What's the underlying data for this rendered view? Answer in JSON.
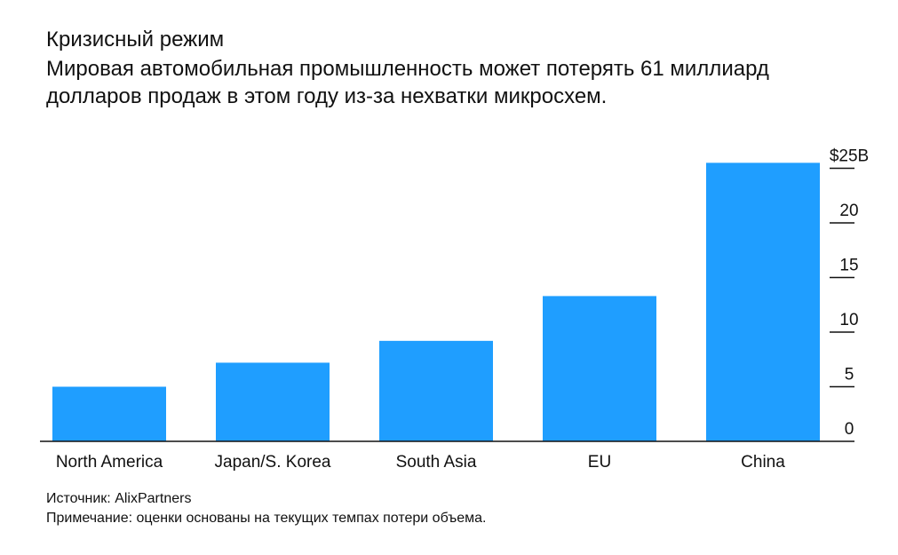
{
  "header": {
    "title": "Кризисный режим",
    "subtitle": "Мировая автомобильная промышленность может потерять 61 миллиард долларов продаж в этом году из-за нехватки микросхем."
  },
  "footer": {
    "source": "Источник: AlixPartners",
    "note": "Примечание: оценки основаны на текущих темпах потери объема."
  },
  "colors": {
    "bar": "#1f9eff",
    "axis": "#111111",
    "text": "#111111"
  },
  "chart_data": {
    "type": "bar",
    "categories": [
      "North America",
      "Japan/S. Korea",
      "South Asia",
      "EU",
      "China"
    ],
    "values": [
      5.0,
      7.2,
      9.2,
      13.3,
      25.5
    ],
    "ylim": [
      0,
      25
    ],
    "yticks": [
      0,
      5,
      10,
      15,
      20,
      25
    ],
    "ytick_labels": [
      "0",
      "5",
      "10",
      "15",
      "20",
      "$25B"
    ],
    "yaxis_position": "right",
    "grid": false
  }
}
